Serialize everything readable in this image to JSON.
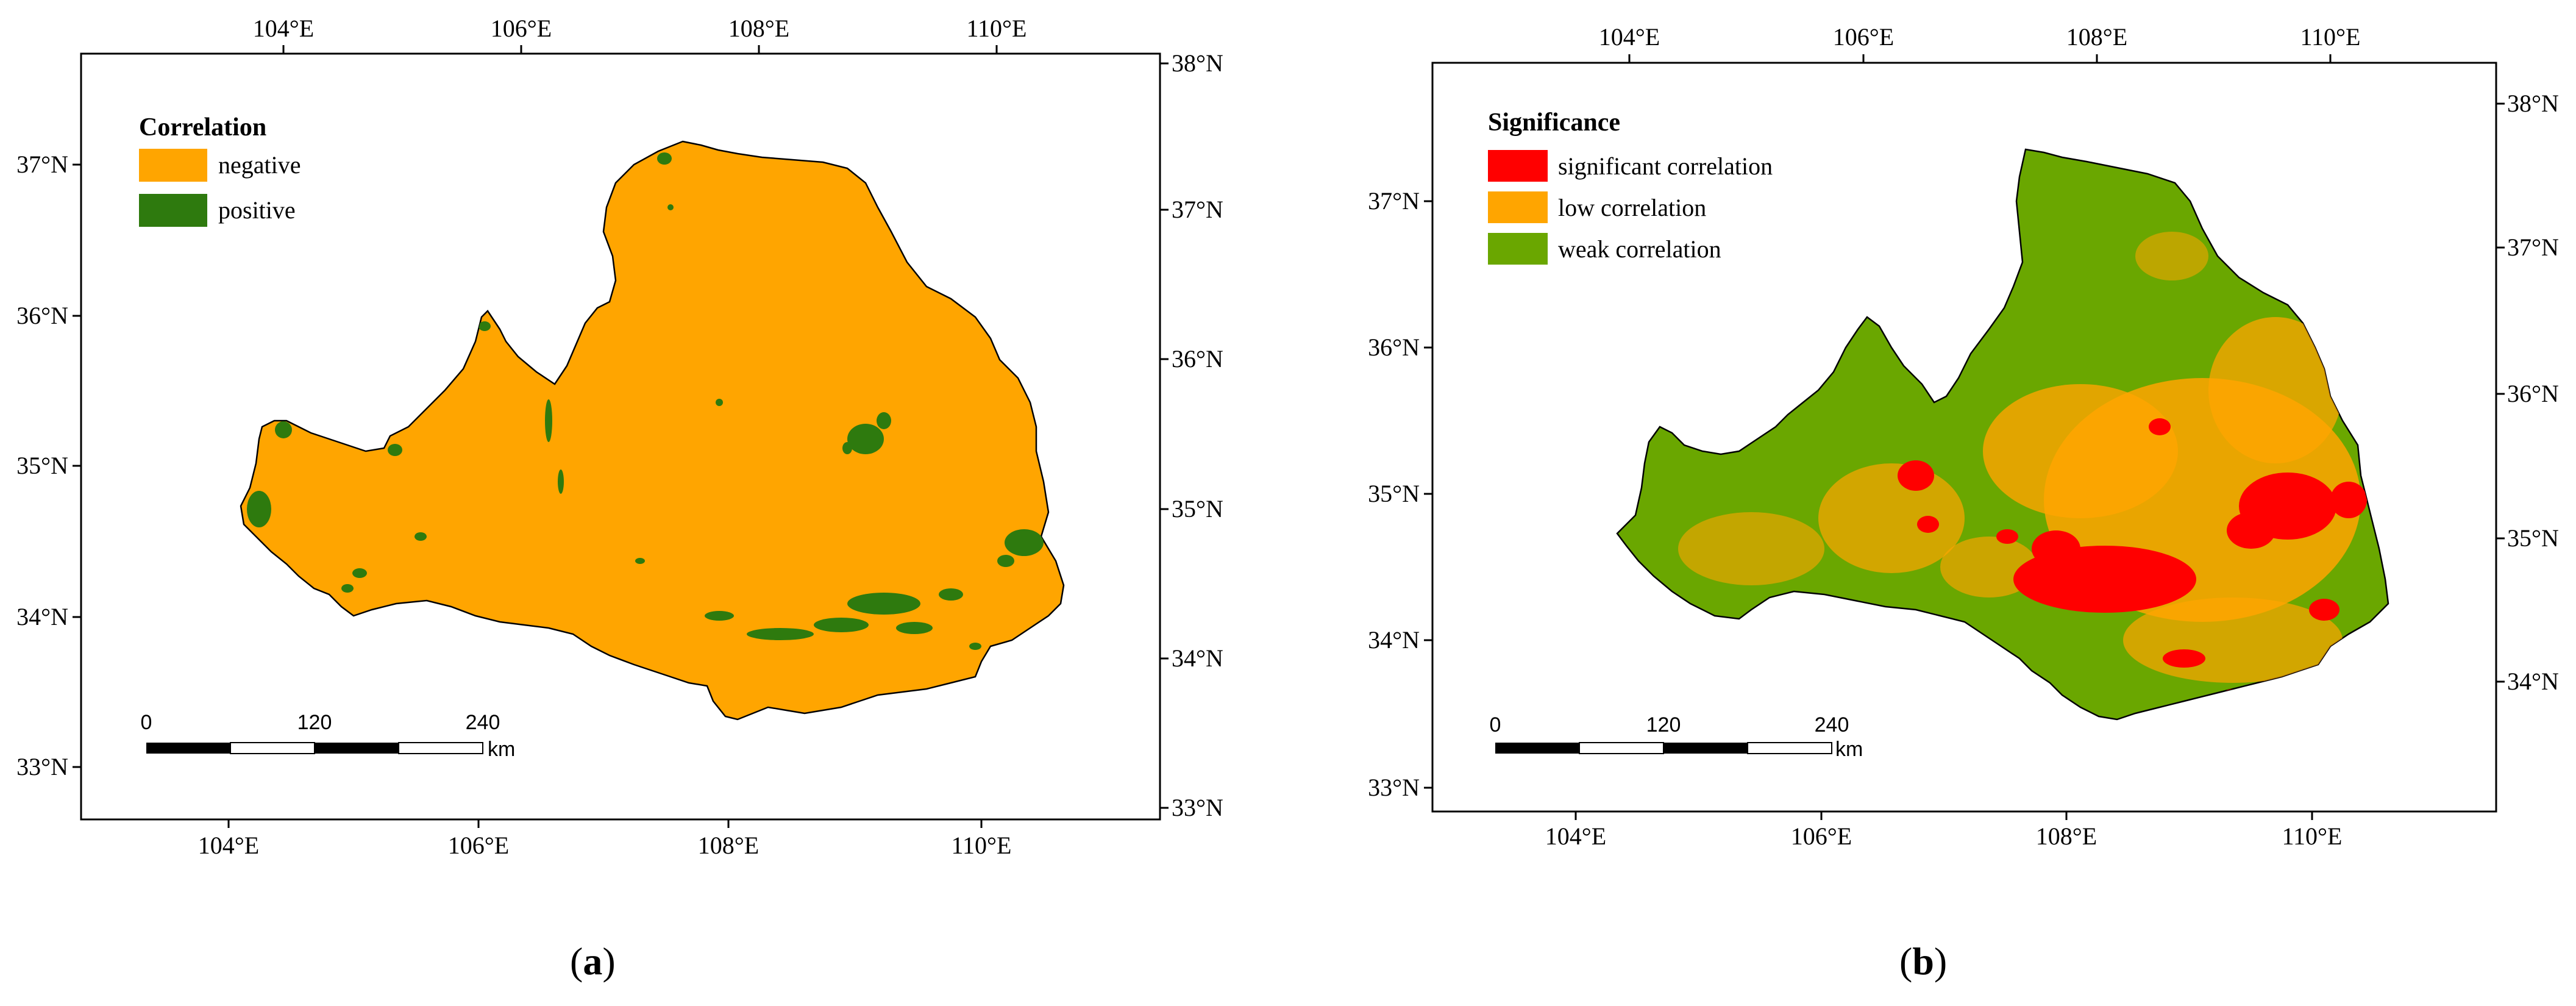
{
  "panels": [
    {
      "id": "a",
      "label_open": "(",
      "label_letter": "a",
      "label_close": ")",
      "legend": {
        "title": "Correlation",
        "items": [
          {
            "label": "negative",
            "color": "#FFA500"
          },
          {
            "label": "positive",
            "color": "#2E7A0E"
          }
        ]
      },
      "top_lon_labels": [
        "104°E",
        "106°E",
        "108°E",
        "110°E"
      ],
      "bottom_lon_labels": [
        "104°E",
        "106°E",
        "108°E",
        "110°E"
      ],
      "left_lat_labels": [
        "37°N",
        "36°N",
        "35°N",
        "34°N",
        "33°N"
      ],
      "right_lat_labels": [
        "38°N",
        "37°N",
        "36°N",
        "35°N",
        "34°N",
        "33°N"
      ],
      "scale": {
        "labels": [
          "0",
          "120",
          "240"
        ],
        "unit": "km"
      },
      "map_colors": {
        "base": "#FFA500",
        "overlay": "#2E7A0E"
      }
    },
    {
      "id": "b",
      "label_open": "(",
      "label_letter": "b",
      "label_close": ")",
      "legend": {
        "title": "Significance",
        "items": [
          {
            "label": "significant correlation",
            "color": "#FF0000"
          },
          {
            "label": "low correlation",
            "color": "#FFA500"
          },
          {
            "label": "weak correlation",
            "color": "#6AA700"
          }
        ]
      },
      "top_lon_labels": [
        "104°E",
        "106°E",
        "108°E",
        "110°E"
      ],
      "bottom_lon_labels": [
        "104°E",
        "106°E",
        "108°E",
        "110°E"
      ],
      "left_lat_labels": [
        "37°N",
        "36°N",
        "35°N",
        "34°N",
        "33°N"
      ],
      "right_lat_labels": [
        "38°N",
        "37°N",
        "36°N",
        "35°N",
        "34°N"
      ],
      "scale": {
        "labels": [
          "0",
          "120",
          "240"
        ],
        "unit": "km"
      },
      "map_colors": {
        "base": "#6AA700",
        "overlay": "#FFA500",
        "highlight": "#FF0000"
      }
    }
  ]
}
